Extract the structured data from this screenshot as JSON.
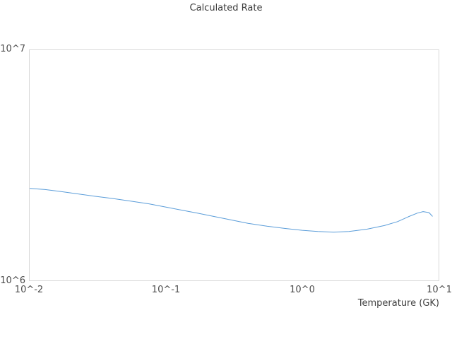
{
  "chart_data": {
    "type": "line",
    "title": "Calculated Rate",
    "xlabel": "Temperature (GK)",
    "ylabel": "",
    "xscale": "log",
    "yscale": "log",
    "xlim": [
      0.01,
      10
    ],
    "ylim": [
      1000000,
      10000000
    ],
    "grid": false,
    "legend": false,
    "line_color": "#5b9dd9",
    "x_tick_labels": [
      "10^-2",
      "10^-1",
      "10^0",
      "10^1"
    ],
    "y_tick_labels": [
      "10^6",
      "10^7"
    ],
    "series": [
      {
        "name": "calculated-rate",
        "x": [
          0.01,
          0.013,
          0.017,
          0.022,
          0.03,
          0.04,
          0.055,
          0.075,
          0.1,
          0.13,
          0.17,
          0.22,
          0.3,
          0.4,
          0.55,
          0.75,
          1.0,
          1.3,
          1.7,
          2.2,
          3.0,
          4.0,
          5.0,
          6.0,
          7.0,
          7.7,
          8.5,
          9.0
        ],
        "y": [
          2510000,
          2480000,
          2430000,
          2380000,
          2320000,
          2270000,
          2210000,
          2150000,
          2080000,
          2020000,
          1960000,
          1900000,
          1830000,
          1770000,
          1720000,
          1680000,
          1650000,
          1630000,
          1620000,
          1630000,
          1670000,
          1730000,
          1800000,
          1890000,
          1960000,
          1990000,
          1970000,
          1900000
        ]
      }
    ]
  }
}
